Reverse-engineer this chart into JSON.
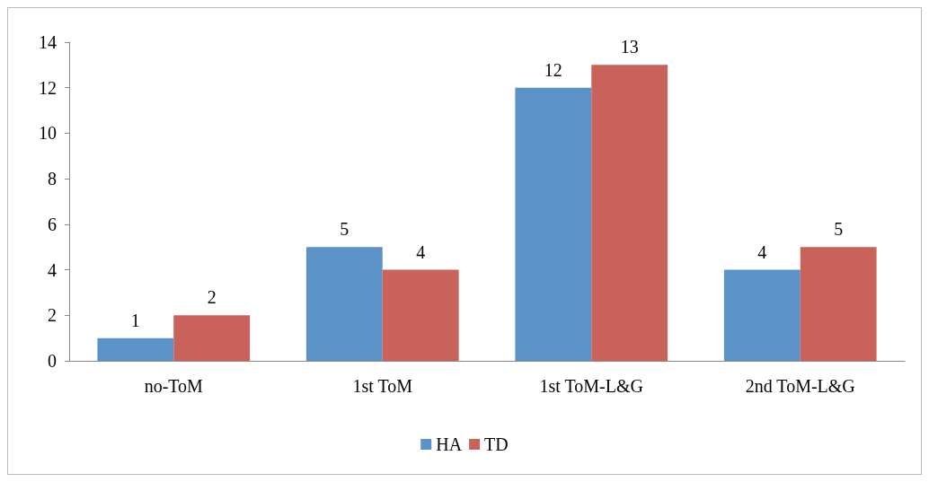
{
  "chart_data": {
    "type": "bar",
    "categories": [
      "no-ToM",
      "1st ToM",
      "1st ToM-L&G",
      "2nd ToM-L&G"
    ],
    "series": [
      {
        "name": "HA",
        "color": "#5b93c7",
        "values": [
          1,
          5,
          12,
          4
        ]
      },
      {
        "name": "TD",
        "color": "#c9625b",
        "values": [
          2,
          4,
          13,
          5
        ]
      }
    ],
    "ylim": [
      0,
      14
    ],
    "yticks": [
      0,
      2,
      4,
      6,
      8,
      10,
      12,
      14
    ],
    "grid": false,
    "legend": "bottom",
    "data_labels": true
  }
}
